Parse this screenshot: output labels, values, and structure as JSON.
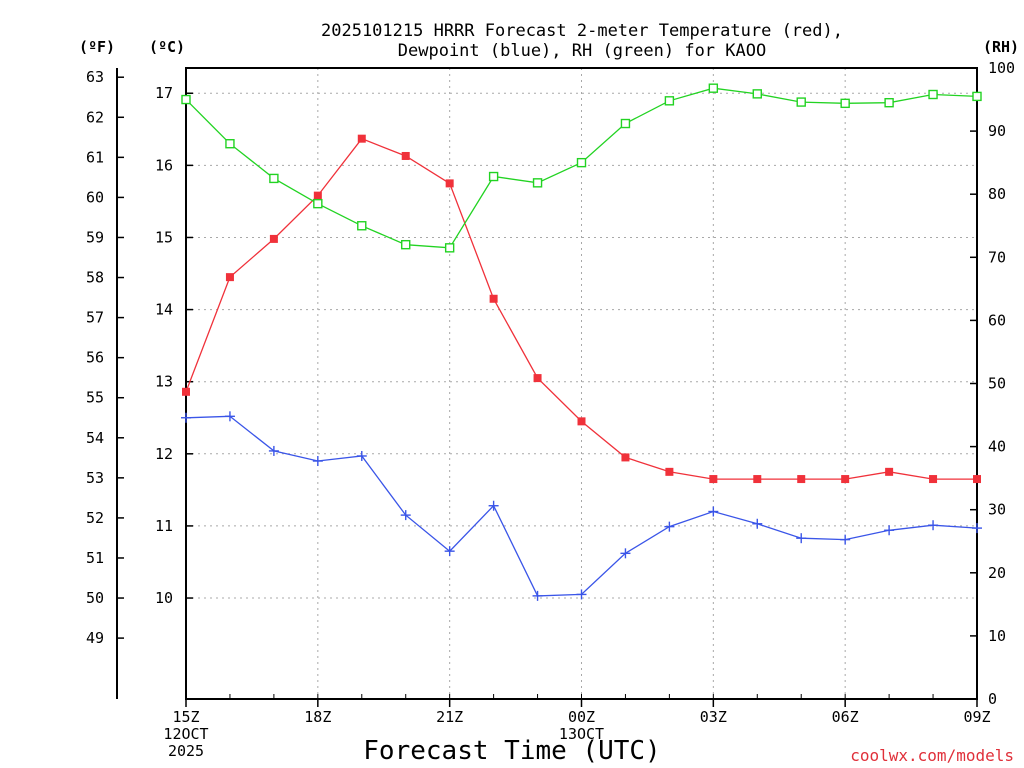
{
  "chart_data": {
    "type": "line",
    "title_lines": [
      "2025101215 HRRR Forecast 2-meter Temperature (red),",
      "Dewpoint (blue), RH (green) for KAOO"
    ],
    "xlabel": "Forecast Time (UTC)",
    "credit": "coolwx.com/models",
    "x_hours": [
      0,
      1,
      2,
      3,
      4,
      5,
      6,
      7,
      8,
      9,
      10,
      11,
      12,
      13,
      14,
      15,
      16,
      17,
      18
    ],
    "x_ticks": [
      {
        "hour": 0,
        "lines": [
          "15Z",
          "12OCT",
          "2025"
        ]
      },
      {
        "hour": 3,
        "lines": [
          "18Z"
        ]
      },
      {
        "hour": 6,
        "lines": [
          "21Z"
        ]
      },
      {
        "hour": 9,
        "lines": [
          "00Z",
          "13OCT"
        ]
      },
      {
        "hour": 12,
        "lines": [
          "03Z"
        ]
      },
      {
        "hour": 15,
        "lines": [
          "06Z"
        ]
      },
      {
        "hour": 18,
        "lines": [
          "09Z"
        ]
      }
    ],
    "axes": {
      "celsius": {
        "label": "(ºC)",
        "range": [
          8.6,
          17.35
        ],
        "ticks": [
          10,
          11,
          12,
          13,
          14,
          15,
          16,
          17
        ]
      },
      "fahrenheit": {
        "label": "(ºF)",
        "ticks": [
          49,
          50,
          51,
          52,
          53,
          54,
          55,
          56,
          57,
          58,
          59,
          60,
          61,
          62,
          63
        ]
      },
      "rh": {
        "label": "(RH)",
        "range": [
          0,
          100
        ],
        "ticks": [
          0,
          10,
          20,
          30,
          40,
          50,
          60,
          70,
          80,
          90,
          100
        ]
      }
    },
    "series": [
      {
        "name": "2-meter Temperature",
        "units": "C",
        "axis": "celsius",
        "color": "#f0313a",
        "marker": "filled-square",
        "values": [
          12.86,
          14.45,
          14.98,
          15.58,
          16.37,
          16.13,
          15.75,
          14.15,
          13.05,
          12.45,
          11.95,
          11.75,
          11.65,
          11.65,
          11.65,
          11.65,
          11.75,
          11.65,
          11.65
        ]
      },
      {
        "name": "Dewpoint",
        "units": "C",
        "axis": "celsius",
        "color": "#3a55e8",
        "marker": "plus",
        "values": [
          12.5,
          12.52,
          12.04,
          11.9,
          11.97,
          11.15,
          10.65,
          11.28,
          10.03,
          10.05,
          10.62,
          10.99,
          11.2,
          11.03,
          10.83,
          10.81,
          10.94,
          11.01,
          10.97
        ]
      },
      {
        "name": "RH",
        "units": "%",
        "axis": "rh",
        "color": "#22d322",
        "marker": "open-square",
        "values": [
          95,
          88,
          82.5,
          78.5,
          75,
          72,
          71.5,
          82.8,
          81.8,
          85,
          91.2,
          94.8,
          96.8,
          95.9,
          94.6,
          94.4,
          94.5,
          95.8,
          95.5
        ]
      }
    ]
  }
}
